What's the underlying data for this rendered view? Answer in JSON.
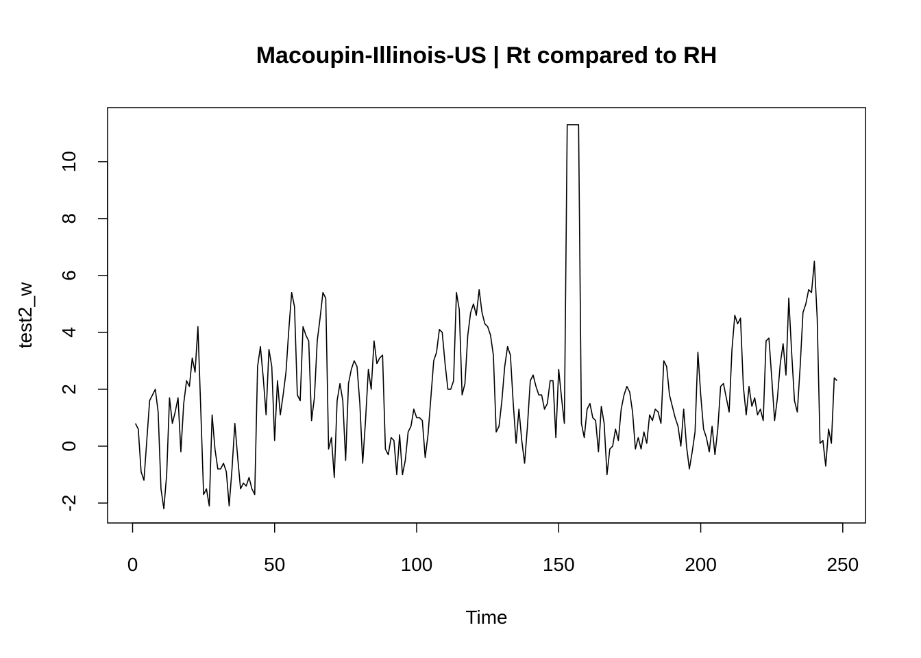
{
  "chart_data": {
    "type": "line",
    "title": "Macoupin-Illinois-US | Rt compared to RH",
    "xlabel": "Time",
    "ylabel": "test2_w",
    "xlim": [
      -8.8,
      258
    ],
    "ylim": [
      -2.7,
      11.9
    ],
    "x_ticks": [
      0,
      50,
      100,
      150,
      200,
      250
    ],
    "y_ticks": [
      -2,
      0,
      2,
      4,
      6,
      8,
      10
    ],
    "grid": false,
    "legend": "none",
    "line_color": "#000000",
    "series": [
      {
        "values": [
          0.8,
          0.6,
          -0.9,
          -1.2,
          0.2,
          1.6,
          1.8,
          2.0,
          1.2,
          -1.5,
          -2.2,
          -1.0,
          1.7,
          0.8,
          1.2,
          1.7,
          -0.2,
          1.5,
          2.3,
          2.1,
          3.1,
          2.6,
          4.2,
          1.3,
          -1.7,
          -1.5,
          -2.1,
          1.1,
          -0.1,
          -0.8,
          -0.8,
          -0.6,
          -0.9,
          -2.1,
          -0.8,
          0.8,
          -0.4,
          -1.5,
          -1.3,
          -1.4,
          -1.1,
          -1.5,
          -1.7,
          2.8,
          3.5,
          2.4,
          1.1,
          3.4,
          2.8,
          0.2,
          2.3,
          1.1,
          1.8,
          2.6,
          4.1,
          5.4,
          4.9,
          1.8,
          1.6,
          4.2,
          3.9,
          3.7,
          0.9,
          1.7,
          3.7,
          4.5,
          5.4,
          5.2,
          -0.1,
          0.3,
          -1.1,
          1.6,
          2.2,
          1.6,
          -0.5,
          2.2,
          2.7,
          3.0,
          2.8,
          1.5,
          -0.6,
          0.9,
          2.7,
          2.0,
          3.7,
          2.9,
          3.1,
          3.2,
          -0.1,
          -0.3,
          0.3,
          0.2,
          -1.0,
          0.4,
          -1.0,
          -0.5,
          0.5,
          0.7,
          1.3,
          1.0,
          1.0,
          0.9,
          -0.4,
          0.4,
          1.7,
          3.0,
          3.3,
          4.1,
          4.0,
          2.9,
          2.0,
          2.0,
          2.3,
          5.4,
          4.8,
          1.8,
          2.2,
          3.9,
          4.7,
          5.0,
          4.6,
          5.5,
          4.7,
          4.3,
          4.2,
          3.9,
          3.2,
          0.5,
          0.7,
          1.6,
          2.8,
          3.5,
          3.2,
          1.5,
          0.1,
          1.3,
          0.2,
          -0.6,
          0.7,
          2.3,
          2.5,
          2.1,
          1.8,
          1.8,
          1.3,
          1.5,
          2.3,
          2.3,
          0.3,
          2.7,
          1.7,
          0.8,
          11.3,
          11.3,
          11.3,
          11.3,
          11.3,
          0.8,
          0.3,
          1.3,
          1.5,
          1.0,
          0.9,
          -0.2,
          1.4,
          0.8,
          -1.0,
          -0.1,
          0.0,
          0.6,
          0.2,
          1.3,
          1.8,
          2.1,
          1.9,
          1.2,
          -0.1,
          0.3,
          -0.1,
          0.5,
          0.1,
          1.1,
          0.9,
          1.3,
          1.2,
          0.8,
          3.0,
          2.8,
          1.8,
          1.4,
          1.0,
          0.7,
          0.0,
          1.3,
          0.0,
          -0.8,
          -0.2,
          0.5,
          3.3,
          1.8,
          0.6,
          0.3,
          -0.2,
          0.7,
          -0.3,
          0.6,
          2.1,
          2.2,
          1.7,
          1.2,
          3.4,
          4.6,
          4.3,
          4.5,
          2.1,
          1.1,
          2.1,
          1.4,
          1.7,
          1.1,
          1.3,
          0.9,
          3.7,
          3.8,
          2.4,
          0.9,
          1.7,
          2.9,
          3.6,
          2.5,
          5.2,
          3.3,
          1.6,
          1.2,
          2.8,
          4.7,
          5.0,
          5.5,
          5.4,
          6.5,
          4.5,
          0.1,
          0.2,
          -0.7,
          0.6,
          0.1,
          2.4,
          2.3
        ]
      }
    ]
  }
}
